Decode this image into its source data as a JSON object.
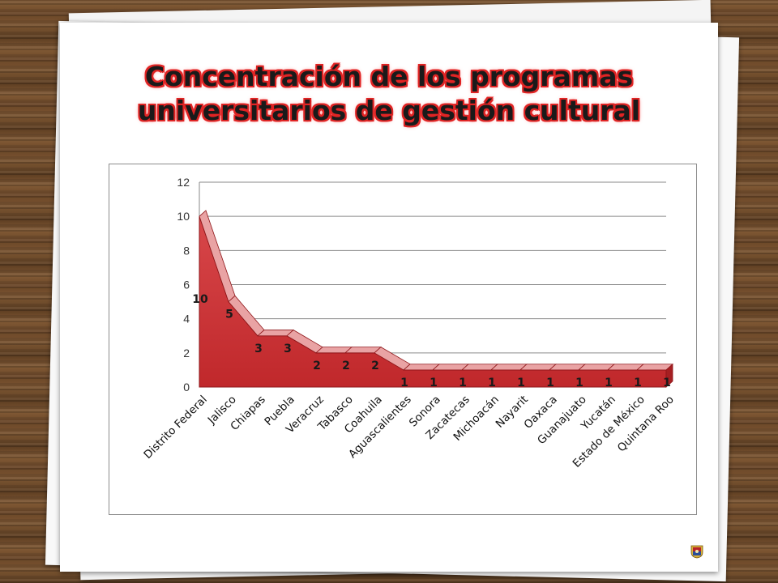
{
  "slide": {
    "title_line1": "Concentración de los programas",
    "title_line2": "universitarios de gestión cultural",
    "logo_icon": "university-seal-icon"
  },
  "colors": {
    "area_fill": "#c0282b",
    "area_edge": "#8e1518",
    "title_glow": "#e02424"
  },
  "chart_data": {
    "type": "area",
    "title": "",
    "xlabel": "",
    "ylabel": "",
    "ylim": [
      0,
      12
    ],
    "yticks": [
      0,
      2,
      4,
      6,
      8,
      10,
      12
    ],
    "grid": true,
    "legend": "none",
    "categories": [
      "Distrito Federal",
      "Jalisco",
      "Chiapas",
      "Puebla",
      "Veracruz",
      "Tabasco",
      "Coahuila",
      "Aguascalientes",
      "Sonora",
      "Zacatecas",
      "Michoacán",
      "Nayarit",
      "Oaxaca",
      "Guanajuato",
      "Yucatán",
      "Estado de México",
      "Quintana Roo"
    ],
    "values": [
      10,
      5,
      3,
      3,
      2,
      2,
      2,
      1,
      1,
      1,
      1,
      1,
      1,
      1,
      1,
      1,
      1
    ],
    "data_labels": [
      "10",
      "5",
      "3",
      "3",
      "2",
      "2",
      "2",
      "1",
      "1",
      "1",
      "1",
      "1",
      "1",
      "1",
      "1",
      "1",
      "1"
    ]
  }
}
